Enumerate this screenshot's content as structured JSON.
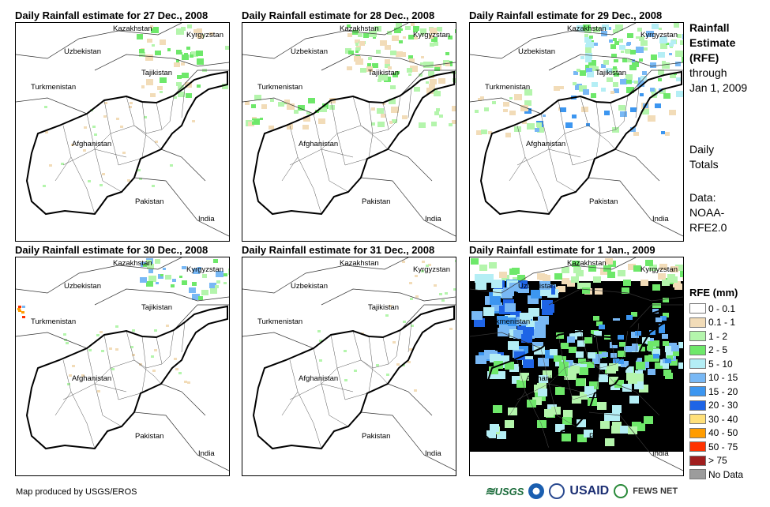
{
  "panels": [
    {
      "title": "Daily Rainfall estimate for 27 Dec., 2008",
      "pattern": "dry"
    },
    {
      "title": "Daily Rainfall estimate for 28 Dec., 2008",
      "pattern": "north"
    },
    {
      "title": "Daily Rainfall estimate for 29 Dec., 2008",
      "pattern": "northeast"
    },
    {
      "title": "Daily Rainfall estimate for 30 Dec., 2008",
      "pattern": "light"
    },
    {
      "title": "Daily Rainfall estimate for 31 Dec., 2008",
      "pattern": "dry2"
    },
    {
      "title": "Daily Rainfall estimate for 1 Jan., 2009",
      "pattern": "wet"
    }
  ],
  "countries": [
    "Kazakhstan",
    "Kyrgyzstan",
    "Uzbekistan",
    "Tajikistan",
    "Turkmenistan",
    "Afghanistan",
    "Pakistan",
    "India"
  ],
  "side": {
    "title_lines": [
      "Rainfall",
      "Estimate",
      "(RFE)"
    ],
    "through": [
      "through",
      "Jan 1, 2009"
    ],
    "totals": [
      "Daily",
      "Totals"
    ],
    "data": [
      "Data:",
      "NOAA-",
      "RFE2.0"
    ]
  },
  "legend": {
    "title": "RFE (mm)",
    "items": [
      {
        "label": "0 - 0.1",
        "color": "#ffffff"
      },
      {
        "label": "0.1 - 1",
        "color": "#f2dcb8"
      },
      {
        "label": "1 - 2",
        "color": "#b4f5ac"
      },
      {
        "label": "2 - 5",
        "color": "#6ee86a"
      },
      {
        "label": "5 - 10",
        "color": "#b4eef5"
      },
      {
        "label": "10 - 15",
        "color": "#78b8f5"
      },
      {
        "label": "15 - 20",
        "color": "#3c96f0"
      },
      {
        "label": "20 - 30",
        "color": "#1e64e6"
      },
      {
        "label": "30 - 40",
        "color": "#ffe07a"
      },
      {
        "label": "40 - 50",
        "color": "#ff9c00"
      },
      {
        "label": "50 - 75",
        "color": "#ff3200"
      },
      {
        "label": "> 75",
        "color": "#a01e1e"
      },
      {
        "label": "No Data",
        "color": "#9c9c9c"
      }
    ]
  },
  "credit": "Map produced by USGS/EROS",
  "logos": {
    "usgs": "USGS",
    "usaid": "USAID",
    "fews": "FEWS NET"
  }
}
